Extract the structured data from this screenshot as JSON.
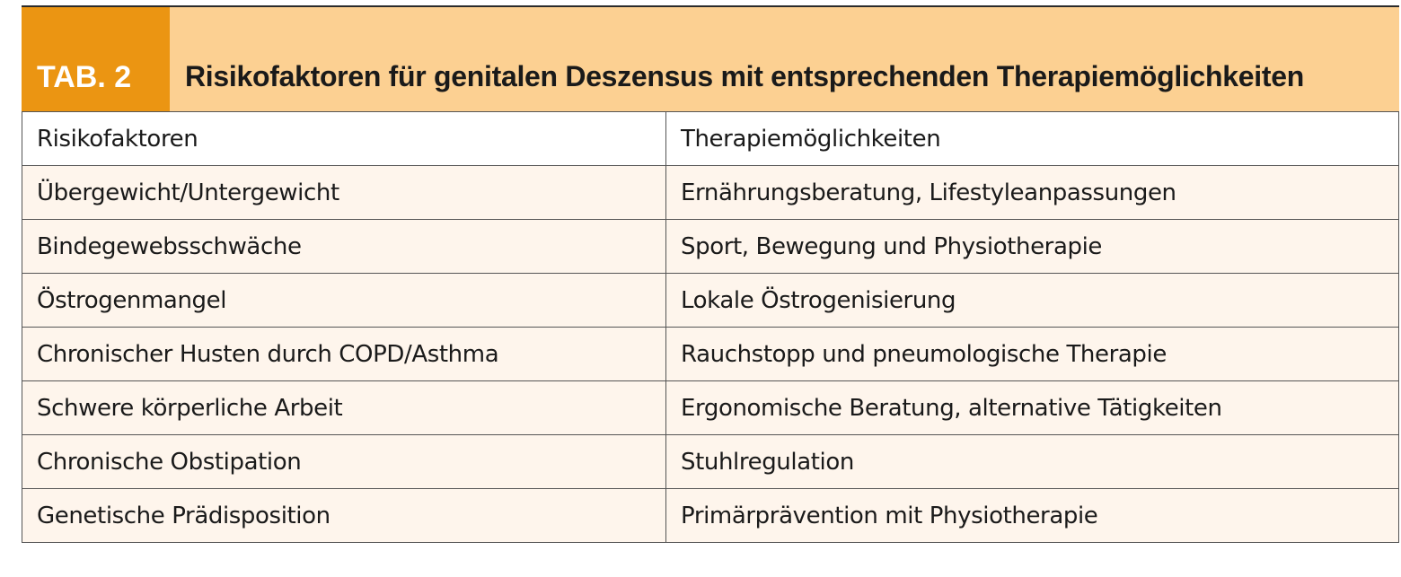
{
  "table": {
    "tab_label": "TAB. 2",
    "title": "Risikofaktoren für genitalen Deszensus mit entsprechenden Therapiemöglichkeiten",
    "columns": [
      "Risikofaktoren",
      "Therapiemöglichkeiten"
    ],
    "rows": [
      [
        "Übergewicht/Untergewicht",
        "Ernährungsberatung, Lifestyleanpassungen"
      ],
      [
        "Bindegewebsschwäche",
        "Sport, Bewegung und Physiotherapie"
      ],
      [
        "Östrogenmangel",
        "Lokale Östrogenisierung"
      ],
      [
        "Chronischer Husten durch COPD/Asthma",
        "Rauchstopp und pneumologische Therapie"
      ],
      [
        "Schwere körperliche Arbeit",
        "Ergonomische Beratung, alternative Tätigkeiten"
      ],
      [
        "Chronische Obstipation",
        "Stuhlregulation"
      ],
      [
        "Genetische Prädisposition",
        "Primärprävention mit Physiotherapie"
      ]
    ]
  },
  "colors": {
    "tab_orange": "#eb9512",
    "title_peach": "#fcd092",
    "row_tint": "#fef5ec",
    "border": "#555555"
  }
}
